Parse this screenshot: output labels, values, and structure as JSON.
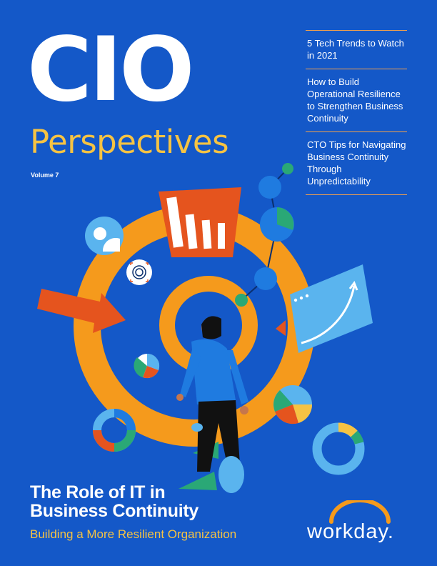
{
  "masthead": {
    "title": "CIO",
    "subtitle": "Perspectives",
    "volume": "Volume 7"
  },
  "toc": [
    {
      "title": "5 Tech Trends to Watch in 2021"
    },
    {
      "title": "How to Build Operational Resilience to Strengthen Business Continuity"
    },
    {
      "title": "CTO Tips for Navigating Business Continuity Through Unpredictability"
    }
  ],
  "feature": {
    "headline_line1": "The Role of IT in",
    "headline_line2": "Business Continuity",
    "tagline": "Building a More Resilient Organization"
  },
  "brand": {
    "name": "workday.",
    "logo_icon": "workday-arc-logo"
  },
  "colors": {
    "background": "#1458c8",
    "accent_yellow": "#f6c343",
    "accent_orange": "#f59a1c",
    "accent_red": "#e5541e",
    "accent_green": "#2aa876",
    "light_blue": "#5ab4ee"
  }
}
